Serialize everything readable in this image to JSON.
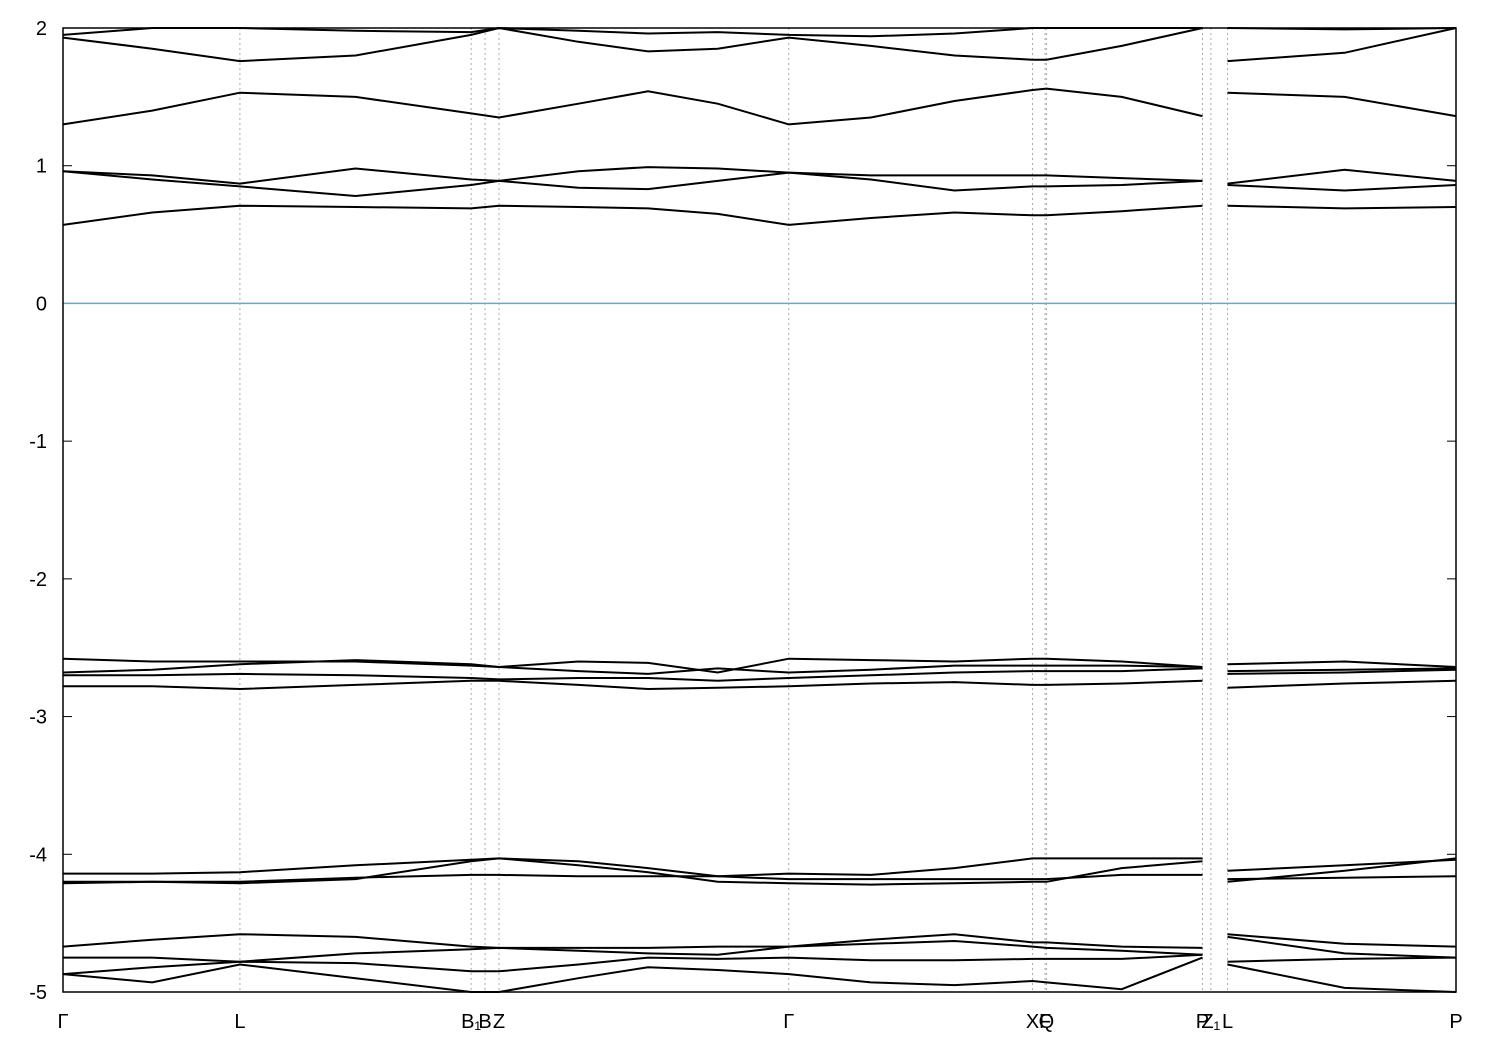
{
  "chart_data": {
    "type": "line",
    "x": [
      0,
      0.064,
      0.127,
      0.21,
      0.293,
      0.313,
      0.37,
      0.42,
      0.47,
      0.521,
      0.58,
      0.64,
      0.696,
      0.706,
      0.76,
      0.818,
      0.826,
      0.836,
      0.92,
      1.0
    ],
    "xlim": [
      0,
      1
    ],
    "xticks": [
      {
        "value": 0,
        "label": "Γ"
      },
      {
        "value": 0.127,
        "label": "L"
      },
      {
        "value": 0.293,
        "label": "B₁"
      },
      {
        "value": 0.303,
        "label": "B"
      },
      {
        "value": 0.313,
        "label": "Z"
      },
      {
        "value": 0.521,
        "label": "Γ"
      },
      {
        "value": 0.696,
        "label": "X"
      },
      {
        "value": 0.705,
        "label": "F"
      },
      {
        "value": 0.706,
        "label": "Q"
      },
      {
        "value": 0.818,
        "label": "P"
      },
      {
        "value": 0.824,
        "label": "Z₁"
      },
      {
        "value": 0.836,
        "label": "L"
      },
      {
        "value": 1.0,
        "label": "P"
      }
    ],
    "ylim": [
      -5,
      2
    ],
    "yticks": [
      2,
      1,
      0,
      -1,
      -2,
      -3,
      -4,
      -5
    ],
    "fermi_level": 0,
    "fermi_color": "#5aaec6",
    "grid": true,
    "series": [
      {
        "color": "#000000",
        "values": [
          1.3,
          1.4,
          1.53,
          1.5,
          1.38,
          1.35,
          1.45,
          1.54,
          1.45,
          1.3,
          1.35,
          1.47,
          1.55,
          1.56,
          1.5,
          1.36,
          null,
          1.53,
          1.5,
          1.36
        ]
      },
      {
        "color": "#000000",
        "values": [
          1.93,
          1.85,
          1.76,
          1.8,
          1.95,
          2.0,
          1.9,
          1.83,
          1.85,
          1.93,
          1.87,
          1.8,
          1.77,
          1.77,
          1.87,
          2.0,
          null,
          1.76,
          1.82,
          2.0
        ]
      },
      {
        "color": "#000000",
        "values": [
          1.95,
          2.0,
          2.0,
          1.98,
          1.97,
          2.0,
          1.98,
          1.96,
          1.97,
          1.95,
          1.94,
          1.96,
          2.0,
          2.0,
          2.0,
          2.0,
          null,
          2.0,
          1.99,
          2.0
        ]
      },
      {
        "color": "#000000",
        "values": [
          0.57,
          0.66,
          0.71,
          0.7,
          0.69,
          0.71,
          0.7,
          0.69,
          0.65,
          0.57,
          0.62,
          0.66,
          0.64,
          0.64,
          0.67,
          0.71,
          null,
          0.71,
          0.69,
          0.7
        ]
      },
      {
        "color": "#000000",
        "values": [
          0.96,
          0.9,
          0.85,
          0.78,
          0.86,
          0.89,
          0.84,
          0.83,
          0.89,
          0.95,
          0.9,
          0.82,
          0.85,
          0.85,
          0.86,
          0.89,
          null,
          0.86,
          0.82,
          0.86
        ]
      },
      {
        "color": "#000000",
        "values": [
          0.96,
          0.93,
          0.87,
          0.98,
          0.9,
          0.89,
          0.96,
          0.99,
          0.98,
          0.95,
          0.93,
          0.93,
          0.93,
          0.93,
          0.91,
          0.89,
          null,
          0.87,
          0.97,
          0.89
        ]
      },
      {
        "color": "#000000",
        "values": [
          -2.58,
          -2.6,
          -2.6,
          -2.6,
          -2.63,
          -2.64,
          -2.6,
          -2.61,
          -2.68,
          -2.58,
          -2.59,
          -2.6,
          -2.58,
          -2.58,
          -2.6,
          -2.64,
          null,
          -2.62,
          -2.6,
          -2.64
        ]
      },
      {
        "color": "#000000",
        "values": [
          -2.68,
          -2.66,
          -2.62,
          -2.59,
          -2.62,
          -2.64,
          -2.67,
          -2.69,
          -2.65,
          -2.68,
          -2.66,
          -2.63,
          -2.63,
          -2.63,
          -2.63,
          -2.64,
          null,
          -2.67,
          -2.66,
          -2.65
        ]
      },
      {
        "color": "#000000",
        "values": [
          -2.7,
          -2.7,
          -2.69,
          -2.7,
          -2.72,
          -2.73,
          -2.72,
          -2.72,
          -2.74,
          -2.72,
          -2.7,
          -2.68,
          -2.67,
          -2.67,
          -2.67,
          -2.65,
          null,
          -2.69,
          -2.68,
          -2.66
        ]
      },
      {
        "color": "#000000",
        "values": [
          -2.78,
          -2.78,
          -2.8,
          -2.77,
          -2.74,
          -2.74,
          -2.77,
          -2.8,
          -2.79,
          -2.78,
          -2.76,
          -2.75,
          -2.77,
          -2.77,
          -2.76,
          -2.74,
          null,
          -2.79,
          -2.76,
          -2.74
        ]
      },
      {
        "color": "#000000",
        "values": [
          -4.14,
          -4.14,
          -4.13,
          -4.08,
          -4.04,
          -4.03,
          -4.05,
          -4.1,
          -4.16,
          -4.14,
          -4.15,
          -4.1,
          -4.03,
          -4.03,
          -4.03,
          -4.03,
          null,
          -4.12,
          -4.08,
          -4.04
        ]
      },
      {
        "color": "#000000",
        "values": [
          -4.2,
          -4.2,
          -4.2,
          -4.17,
          -4.15,
          -4.15,
          -4.16,
          -4.16,
          -4.16,
          -4.18,
          -4.18,
          -4.18,
          -4.18,
          -4.18,
          -4.15,
          -4.15,
          null,
          -4.18,
          -4.17,
          -4.16
        ]
      },
      {
        "color": "#000000",
        "values": [
          -4.21,
          -4.2,
          -4.21,
          -4.18,
          -4.05,
          -4.03,
          -4.08,
          -4.13,
          -4.2,
          -4.21,
          -4.22,
          -4.21,
          -4.2,
          -4.2,
          -4.1,
          -4.05,
          null,
          -4.2,
          -4.12,
          -4.03
        ]
      },
      {
        "color": "#000000",
        "values": [
          -4.67,
          -4.62,
          -4.58,
          -4.6,
          -4.67,
          -4.68,
          -4.68,
          -4.68,
          -4.67,
          -4.67,
          -4.62,
          -4.58,
          -4.64,
          -4.64,
          -4.67,
          -4.68,
          null,
          -4.58,
          -4.65,
          -4.67
        ]
      },
      {
        "color": "#000000",
        "values": [
          -4.75,
          -4.75,
          -4.78,
          -4.72,
          -4.69,
          -4.68,
          -4.7,
          -4.72,
          -4.73,
          -4.67,
          -4.65,
          -4.63,
          -4.67,
          -4.68,
          -4.7,
          -4.73,
          null,
          -4.6,
          -4.72,
          -4.75
        ]
      },
      {
        "color": "#000000",
        "values": [
          -4.87,
          -4.82,
          -4.78,
          -4.79,
          -4.85,
          -4.85,
          -4.8,
          -4.75,
          -4.76,
          -4.75,
          -4.77,
          -4.77,
          -4.76,
          -4.76,
          -4.76,
          -4.73,
          null,
          -4.78,
          -4.76,
          -4.75
        ]
      },
      {
        "color": "#000000",
        "values": [
          -4.87,
          -4.93,
          -4.8,
          -4.9,
          -5.0,
          -5.0,
          -4.9,
          -4.82,
          -4.84,
          -4.87,
          -4.93,
          -4.95,
          -4.92,
          -4.93,
          -4.98,
          -4.75,
          null,
          -4.8,
          -4.97,
          -5.0
        ]
      }
    ]
  }
}
